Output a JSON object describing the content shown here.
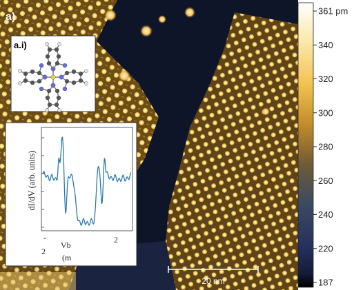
{
  "panel": {
    "label": "a)",
    "inset_label": "a.i)"
  },
  "colorbar": {
    "ticks": [
      "361 pm",
      "340",
      "320",
      "300",
      "280",
      "260",
      "240",
      "220",
      "187"
    ],
    "colors": [
      "#ffffff",
      "#fbe7a8",
      "#f2c14f",
      "#c28a2a",
      "#6f5a36",
      "#3a4a63",
      "#24315b",
      "#161c3a",
      "#000000"
    ]
  },
  "scalebar": {
    "label": "20 nm"
  },
  "inset_spectrum": {
    "ylabel": "dI/dV (arb. units)",
    "xlabel": "Vb",
    "xunit": "(m",
    "xtick_left": "-",
    "xtick_left_num": "2",
    "xtick_right": "2",
    "line_color": "#2b7aa7"
  },
  "molecule": {
    "colors": {
      "carbon": "#555555",
      "hydrogen": "#e6e6e6",
      "nitrogen": "#6a6ad8",
      "center": "#e3d84a"
    }
  }
}
